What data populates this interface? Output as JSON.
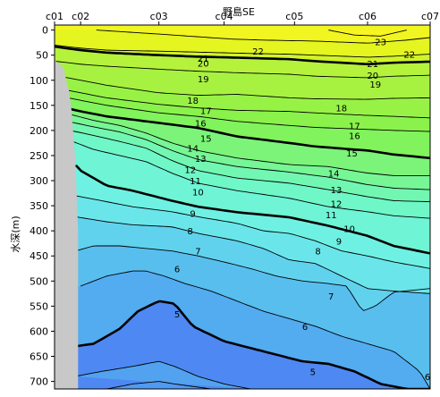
{
  "chart_data": {
    "type": "contour",
    "title": "野島SE",
    "ylabel": "水深(m)",
    "stations": [
      "c01",
      "c02",
      "c03",
      "c04",
      "c05",
      "c06",
      "c07"
    ],
    "station_x": [
      0,
      1,
      4,
      6.5,
      9.2,
      12.0,
      14.4
    ],
    "depth_ticks": [
      0,
      50,
      100,
      150,
      200,
      250,
      300,
      350,
      400,
      450,
      500,
      550,
      600,
      650,
      700
    ],
    "ylim": [
      0,
      715
    ],
    "xlim": [
      0,
      14.4
    ],
    "colormap": "temperature",
    "color_scale": [
      {
        "t": 3,
        "color": "#4d7ff2"
      },
      {
        "t": 6,
        "color": "#54b4ef"
      },
      {
        "t": 9,
        "color": "#6ef0ea"
      },
      {
        "t": 12,
        "color": "#6ff8c0"
      },
      {
        "t": 16,
        "color": "#83f24e"
      },
      {
        "t": 19.5,
        "color": "#b5f23c"
      },
      {
        "t": 21,
        "color": "#ddf51f"
      },
      {
        "t": 23,
        "color": "#f8f520"
      }
    ],
    "bold_levels": [
      5,
      10,
      15,
      20
    ],
    "isotherms": [
      {
        "t": 23,
        "x": [
          10.5,
          11.5,
          12.5,
          13.5
        ],
        "depth": [
          0,
          10,
          12,
          0
        ]
      },
      {
        "t": 22,
        "x": [
          1.6,
          4,
          6.8,
          8,
          10,
          12,
          13.5,
          14.4
        ],
        "depth": [
          0,
          8,
          18,
          20,
          22,
          26,
          20,
          15
        ]
      },
      {
        "t": 21,
        "x": [
          0,
          1,
          2,
          4,
          5.5,
          7,
          9,
          10,
          12,
          13,
          14.4
        ],
        "depth": [
          30,
          36,
          40,
          42,
          44,
          46,
          48,
          50,
          54,
          52,
          48
        ]
      },
      {
        "t": 20,
        "x": [
          0,
          1,
          2,
          4,
          5.5,
          7,
          9,
          10,
          12,
          13,
          14.4
        ],
        "depth": [
          33,
          40,
          45,
          50,
          53,
          55,
          58,
          62,
          68,
          65,
          63
        ]
      },
      {
        "t": 19,
        "x": [
          0,
          1,
          2,
          4,
          5.5,
          7,
          9,
          10,
          12,
          13,
          14.4
        ],
        "depth": [
          62,
          68,
          72,
          78,
          82,
          85,
          88,
          92,
          95,
          92,
          90
        ]
      },
      {
        "t": 18,
        "x": [
          0,
          1,
          2,
          4,
          5.5,
          7,
          9,
          10,
          12,
          13,
          14.4
        ],
        "depth": [
          90,
          100,
          110,
          125,
          130,
          128,
          135,
          137,
          138,
          136,
          135
        ]
      },
      {
        "t": 17,
        "x": [
          0,
          1,
          2,
          4,
          5.5,
          7,
          9,
          10,
          12,
          13,
          14.4
        ],
        "depth": [
          115,
          125,
          135,
          148,
          155,
          160,
          162,
          165,
          170,
          172,
          175
        ]
      },
      {
        "t": 16,
        "x": [
          0,
          1,
          2,
          4,
          5.5,
          7,
          9,
          10,
          12,
          13,
          14.4
        ],
        "depth": [
          130,
          140,
          150,
          165,
          172,
          182,
          190,
          194,
          198,
          200,
          202
        ]
      },
      {
        "t": 15,
        "x": [
          0,
          1,
          2,
          4,
          5.5,
          7,
          9,
          10,
          12,
          13,
          14.4
        ],
        "depth": [
          150,
          162,
          172,
          185,
          195,
          212,
          225,
          232,
          240,
          248,
          255
        ]
      },
      {
        "t": 14,
        "x": [
          0.6,
          1.5,
          2.5,
          3.5,
          4.5,
          5.5,
          7,
          9,
          10.5,
          12,
          13,
          14.4
        ],
        "depth": [
          168,
          180,
          190,
          205,
          225,
          240,
          255,
          268,
          272,
          285,
          290,
          290
        ]
      },
      {
        "t": 13,
        "x": [
          0.6,
          1.5,
          2.5,
          3.5,
          4.5,
          5.5,
          7,
          9,
          10.5,
          12,
          13,
          14.4
        ],
        "depth": [
          183,
          193,
          203,
          218,
          240,
          258,
          272,
          283,
          293,
          308,
          315,
          318
        ]
      },
      {
        "t": 12,
        "x": [
          0.6,
          1.5,
          2.5,
          3.5,
          4.5,
          5.5,
          7,
          9,
          10.5,
          12,
          13,
          14.4
        ],
        "depth": [
          200,
          210,
          222,
          235,
          260,
          280,
          295,
          305,
          318,
          332,
          340,
          342
        ]
      },
      {
        "t": 11,
        "x": [
          0.6,
          1.5,
          2.5,
          3.5,
          4.5,
          5.5,
          7,
          9,
          10.5,
          12,
          13,
          14.4
        ],
        "depth": [
          220,
          238,
          250,
          262,
          285,
          305,
          320,
          335,
          352,
          362,
          370,
          375
        ]
      },
      {
        "t": 10,
        "x": [
          0.5,
          0.8,
          1.0,
          2.0,
          3.0,
          4.5,
          5.5,
          7,
          9,
          10.5,
          12,
          13,
          14.4
        ],
        "depth": [
          275,
          268,
          280,
          310,
          320,
          340,
          352,
          363,
          373,
          390,
          410,
          430,
          445
        ]
      },
      {
        "t": 9,
        "x": [
          0.8,
          2,
          3,
          4.5,
          5.5,
          7,
          8,
          9,
          10,
          11,
          12,
          13,
          14.4
        ],
        "depth": [
          330,
          342,
          352,
          362,
          372,
          385,
          400,
          405,
          420,
          440,
          450,
          462,
          475
        ]
      },
      {
        "t": 8,
        "x": [
          0.8,
          2,
          3,
          4.5,
          5.5,
          7,
          8,
          9,
          10,
          11,
          12,
          13,
          14.4
        ],
        "depth": [
          372,
          382,
          388,
          392,
          405,
          420,
          435,
          458,
          465,
          490,
          515,
          520,
          525
        ]
      },
      {
        "t": 7,
        "x": [
          0.8,
          1.5,
          2.5,
          3.5,
          4.5,
          5.5,
          6.5,
          7.5,
          8.5,
          9.5,
          10.5,
          11.2,
          11.8,
          12.3,
          13,
          14.4
        ],
        "depth": [
          440,
          430,
          430,
          435,
          440,
          450,
          462,
          475,
          490,
          500,
          505,
          510,
          560,
          550,
          522,
          515
        ]
      },
      {
        "t": 6,
        "x": [
          1,
          2,
          3,
          3.5,
          4.2,
          5,
          6,
          7,
          8,
          9,
          10,
          11,
          12,
          13,
          14,
          14.4
        ],
        "depth": [
          510,
          490,
          480,
          480,
          490,
          505,
          520,
          540,
          560,
          575,
          590,
          610,
          625,
          640,
          680,
          715
        ]
      },
      {
        "t": 5,
        "x": [
          0.8,
          1.5,
          2.5,
          3.2,
          4,
          4.6,
          5.3,
          6.5,
          8,
          9.5,
          10.5,
          11.5,
          12.5,
          13.5,
          14.4
        ],
        "depth": [
          630,
          625,
          595,
          560,
          540,
          545,
          590,
          620,
          640,
          660,
          665,
          680,
          705,
          715,
          715
        ]
      },
      {
        "t": 4.5,
        "x": [
          0.8,
          1.8,
          3,
          4,
          4.6,
          5.5,
          6.5,
          7.5
        ],
        "depth": [
          690,
          680,
          670,
          660,
          670,
          690,
          705,
          715
        ]
      },
      {
        "t": 4,
        "x": [
          2.0,
          3,
          4,
          4.6,
          5.3,
          6.0
        ],
        "depth": [
          715,
          705,
          700,
          705,
          710,
          715
        ]
      }
    ],
    "iso_labels": [
      {
        "text": "23",
        "x": 12.5,
        "depth": 23
      },
      {
        "t": 22,
        "text": "22",
        "x": 7.8,
        "depth": 42
      },
      {
        "text": "22",
        "x": 13.6,
        "depth": 48
      },
      {
        "text": "21",
        "x": 5.7,
        "depth": 56
      },
      {
        "text": "20",
        "x": 5.7,
        "depth": 66
      },
      {
        "text": "21",
        "x": 12.2,
        "depth": 67
      },
      {
        "text": "20",
        "x": 12.2,
        "depth": 90
      },
      {
        "text": "19",
        "x": 5.7,
        "depth": 97
      },
      {
        "text": "19",
        "x": 12.3,
        "depth": 108
      },
      {
        "text": "18",
        "x": 5.3,
        "depth": 140
      },
      {
        "text": "18",
        "x": 11.0,
        "depth": 155
      },
      {
        "text": "17",
        "x": 5.8,
        "depth": 160
      },
      {
        "text": "16",
        "x": 5.6,
        "depth": 185
      },
      {
        "text": "17",
        "x": 11.5,
        "depth": 190
      },
      {
        "t": 16,
        "text": "16",
        "x": 11.5,
        "depth": 210
      },
      {
        "text": "15",
        "x": 5.8,
        "depth": 215
      },
      {
        "text": "14",
        "x": 5.3,
        "depth": 235
      },
      {
        "text": "15",
        "x": 11.4,
        "depth": 245
      },
      {
        "text": "13",
        "x": 5.6,
        "depth": 255
      },
      {
        "text": "12",
        "x": 5.2,
        "depth": 278
      },
      {
        "text": "14",
        "x": 10.7,
        "depth": 285
      },
      {
        "text": "11",
        "x": 5.4,
        "depth": 300
      },
      {
        "text": "13",
        "x": 10.8,
        "depth": 318
      },
      {
        "text": "10",
        "x": 5.5,
        "depth": 322
      },
      {
        "text": "12",
        "x": 10.8,
        "depth": 345
      },
      {
        "text": "9",
        "x": 5.3,
        "depth": 365
      },
      {
        "text": "11",
        "x": 10.6,
        "depth": 368
      },
      {
        "text": "10",
        "x": 11.3,
        "depth": 395
      },
      {
        "text": "8",
        "x": 5.2,
        "depth": 400
      },
      {
        "text": "9",
        "x": 10.9,
        "depth": 420
      },
      {
        "text": "8",
        "x": 10.1,
        "depth": 440
      },
      {
        "text": "7",
        "x": 5.5,
        "depth": 440
      },
      {
        "text": "6",
        "x": 4.7,
        "depth": 475
      },
      {
        "text": "7",
        "x": 10.6,
        "depth": 530
      },
      {
        "text": "5",
        "x": 4.7,
        "depth": 565
      },
      {
        "text": "6",
        "x": 9.6,
        "depth": 590
      },
      {
        "text": "5",
        "x": 9.9,
        "depth": 680
      },
      {
        "text": "6",
        "x": 14.3,
        "depth": 690
      }
    ],
    "seafloor": {
      "x": [
        0,
        0.35,
        0.45,
        0.55,
        0.65,
        0.8,
        0.9,
        0.9,
        0
      ],
      "depth": [
        60,
        75,
        100,
        120,
        160,
        260,
        400,
        715,
        715
      ]
    }
  }
}
